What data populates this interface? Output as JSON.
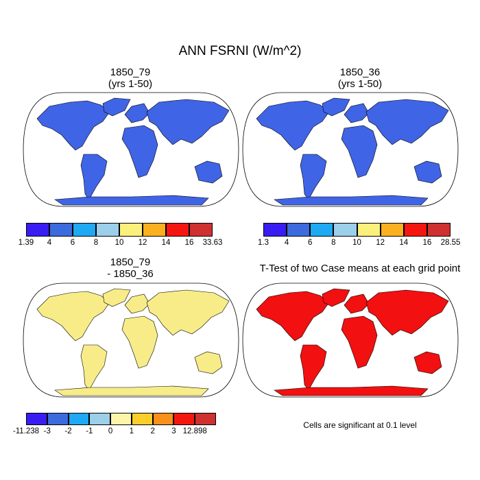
{
  "main_title": "ANN FSRNI (W/m^2)",
  "panels": [
    {
      "id": "p1",
      "title_line1": "1850_79",
      "title_line2": "(yrs 1-50)",
      "fill": "#3f64e6",
      "colorbar": {
        "colors": [
          "#3a1df2",
          "#3c6bde",
          "#1ea9f2",
          "#9ccfe9",
          "#fbf07b",
          "#fbb11f",
          "#f5170f",
          "#cf3030"
        ],
        "labels": [
          "1.39",
          "4",
          "6",
          "8",
          "10",
          "12",
          "14",
          "16",
          "33.63"
        ]
      }
    },
    {
      "id": "p2",
      "title_line1": "1850_36",
      "title_line2": "(yrs 1-50)",
      "fill": "#3f64e6",
      "colorbar": {
        "colors": [
          "#3a1df2",
          "#3c6bde",
          "#1ea9f2",
          "#9ccfe9",
          "#fbf07b",
          "#fbb11f",
          "#f5170f",
          "#cf3030"
        ],
        "labels": [
          "1.3",
          "4",
          "6",
          "8",
          "10",
          "12",
          "14",
          "16",
          "28.55"
        ]
      }
    },
    {
      "id": "p3",
      "title_line1": "1850_79",
      "title_line2": "- 1850_36",
      "fill": "#f7ec88",
      "colorbar": {
        "colors": [
          "#3a1df2",
          "#3c6bde",
          "#1ea9f2",
          "#9ccfe9",
          "#fdf6a8",
          "#fbcf2a",
          "#f7911c",
          "#f5170f",
          "#cf3030"
        ],
        "labels": [
          "-11.238",
          "-3",
          "-2",
          "-1",
          "0",
          "1",
          "2",
          "3",
          "12.898"
        ]
      }
    },
    {
      "id": "p4",
      "title_line1": "T-Test of two Case means at each grid point",
      "fill": "#f21010",
      "note": "Cells are significant at 0.1 level"
    }
  ]
}
